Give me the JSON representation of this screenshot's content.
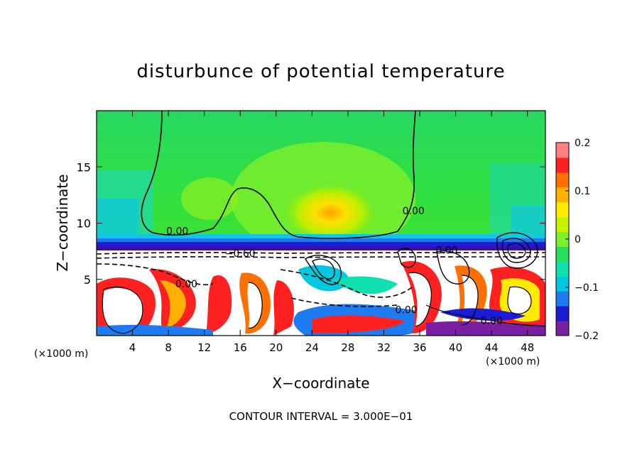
{
  "chart_data": {
    "type": "heatmap",
    "title": "disturbunce of potential temperature",
    "xlabel": "X−coordinate",
    "ylabel": "Z−coordinate",
    "x_unit": "(×1000 m)",
    "x_ticks": [
      4,
      8,
      12,
      16,
      20,
      24,
      28,
      32,
      36,
      40,
      44,
      48
    ],
    "y_ticks": [
      5,
      10,
      15
    ],
    "xlim": [
      0,
      50
    ],
    "ylim": [
      0,
      20
    ],
    "colorbar": {
      "range": [
        -0.2,
        0.2
      ],
      "tick_labels": [
        "0.2",
        "0.1",
        "0",
        "−0.1",
        "−0.2"
      ],
      "tick_values": [
        0.2,
        0.1,
        0,
        -0.1,
        -0.2
      ],
      "colors": [
        "#7a1fa2",
        "#1c1cd6",
        "#1f7cf0",
        "#00c8e0",
        "#10e0b0",
        "#29e05a",
        "#7ef02a",
        "#c8f000",
        "#ffea00",
        "#ffb000",
        "#ff7000",
        "#ff2020",
        "#ff8080"
      ]
    },
    "contour_labels": [
      {
        "text": "0.00",
        "x": 9,
        "y": 9.0
      },
      {
        "text": "0.00",
        "x": 35.3,
        "y": 10.8
      },
      {
        "text": "−0.60",
        "x": 16,
        "y": 7.0
      },
      {
        "text": "0.00",
        "x": 10,
        "y": 4.3
      },
      {
        "text": "0.00",
        "x": 34.5,
        "y": 2.0
      },
      {
        "text": "0.00",
        "x": 44,
        "y": 1.0
      },
      {
        "text": "0.00",
        "x": 39,
        "y": 7.3
      }
    ]
  },
  "footnote": "CONTOUR INTERVAL = 3.000E−01"
}
